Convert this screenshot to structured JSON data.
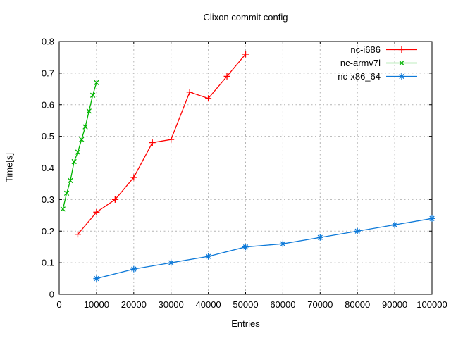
{
  "title": "Clixon commit config",
  "chart_data": {
    "type": "line",
    "title": "Clixon commit config",
    "xlabel": "Entries",
    "ylabel": "Time[s]",
    "xlim": [
      0,
      100000
    ],
    "ylim": [
      0,
      0.8
    ],
    "grid": true,
    "legend_position": "top-right-inside",
    "x_ticks": [
      {
        "value": 0,
        "label": "0"
      },
      {
        "value": 10000,
        "label": "10000"
      },
      {
        "value": 20000,
        "label": "20000"
      },
      {
        "value": 30000,
        "label": "30000"
      },
      {
        "value": 40000,
        "label": "40000"
      },
      {
        "value": 50000,
        "label": "50000"
      },
      {
        "value": 60000,
        "label": "60000"
      },
      {
        "value": 70000,
        "label": "70000"
      },
      {
        "value": 80000,
        "label": "80000"
      },
      {
        "value": 90000,
        "label": "90000"
      },
      {
        "value": 100000,
        "label": "100000"
      }
    ],
    "y_ticks": [
      {
        "value": 0,
        "label": "0"
      },
      {
        "value": 0.1,
        "label": "0.1"
      },
      {
        "value": 0.2,
        "label": "0.2"
      },
      {
        "value": 0.3,
        "label": "0.3"
      },
      {
        "value": 0.4,
        "label": "0.4"
      },
      {
        "value": 0.5,
        "label": "0.5"
      },
      {
        "value": 0.6,
        "label": "0.6"
      },
      {
        "value": 0.7,
        "label": "0.7"
      },
      {
        "value": 0.8,
        "label": "0.8"
      }
    ],
    "series": [
      {
        "name": "nc-i686",
        "color": "#ff0000",
        "marker": "plus",
        "points": [
          [
            5000,
            0.19
          ],
          [
            10000,
            0.26
          ],
          [
            15000,
            0.3
          ],
          [
            20000,
            0.37
          ],
          [
            25000,
            0.48
          ],
          [
            30000,
            0.49
          ],
          [
            35000,
            0.64
          ],
          [
            40000,
            0.62
          ],
          [
            45000,
            0.69
          ],
          [
            50000,
            0.76
          ]
        ]
      },
      {
        "name": "nc-armv7l",
        "color": "#00b400",
        "marker": "cross",
        "points": [
          [
            1000,
            0.27
          ],
          [
            2000,
            0.32
          ],
          [
            3000,
            0.36
          ],
          [
            4000,
            0.42
          ],
          [
            5000,
            0.45
          ],
          [
            6000,
            0.49
          ],
          [
            7000,
            0.53
          ],
          [
            8000,
            0.58
          ],
          [
            9000,
            0.63
          ],
          [
            10000,
            0.67
          ]
        ]
      },
      {
        "name": "nc-x86_64",
        "color": "#0d79d8",
        "marker": "asterisk",
        "points": [
          [
            10000,
            0.05
          ],
          [
            20000,
            0.08
          ],
          [
            30000,
            0.1
          ],
          [
            40000,
            0.12
          ],
          [
            50000,
            0.15
          ],
          [
            60000,
            0.16
          ],
          [
            70000,
            0.18
          ],
          [
            80000,
            0.2
          ],
          [
            90000,
            0.22
          ],
          [
            100000,
            0.24
          ]
        ]
      }
    ]
  }
}
